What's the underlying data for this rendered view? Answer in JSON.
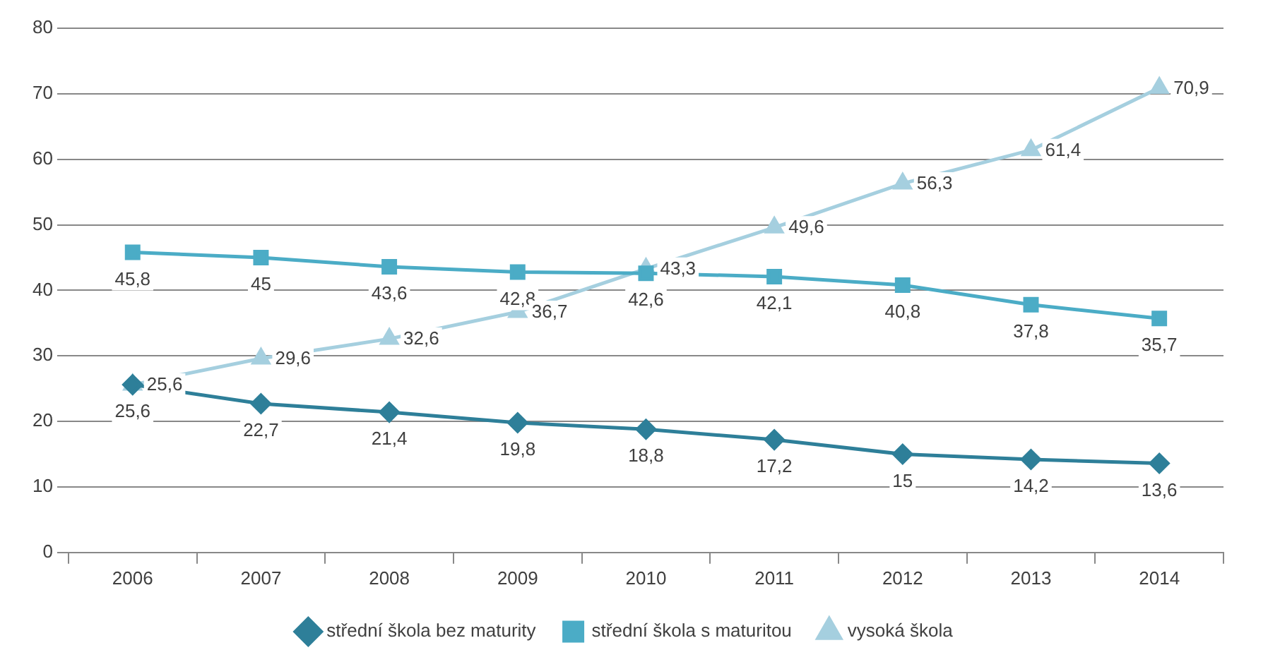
{
  "chart_data": {
    "type": "line",
    "categories": [
      "2006",
      "2007",
      "2008",
      "2009",
      "2010",
      "2011",
      "2012",
      "2013",
      "2014"
    ],
    "series": [
      {
        "name": "střední škola bez maturity",
        "color": "#2e7f99",
        "marker": "diamond",
        "values": [
          25.6,
          22.7,
          21.4,
          19.8,
          18.8,
          17.2,
          15,
          14.2,
          13.6
        ],
        "value_labels": [
          "25,6",
          "22,7",
          "21,4",
          "19,8",
          "18,8",
          "17,2",
          "15",
          "14,2",
          "13,6"
        ]
      },
      {
        "name": "střední škola s maturitou",
        "color": "#4bacc6",
        "marker": "square",
        "values": [
          45.8,
          45,
          43.6,
          42.8,
          42.6,
          42.1,
          40.8,
          37.8,
          35.7
        ],
        "value_labels": [
          "45,8",
          "45",
          "43,6",
          "42,8",
          "42,6",
          "42,1",
          "40,8",
          "37,8",
          "35,7"
        ]
      },
      {
        "name": "vysoká škola",
        "color": "#a5cfdf",
        "marker": "triangle",
        "values": [
          25.6,
          29.6,
          32.6,
          36.7,
          43.3,
          49.6,
          56.3,
          61.4,
          70.9
        ],
        "value_labels": [
          "25,6",
          "29,6",
          "32,6",
          "36,7",
          "43,3",
          "49,6",
          "56,3",
          "61,4",
          "70,9"
        ]
      }
    ],
    "ylim": [
      0,
      80
    ],
    "yticks": [
      0,
      10,
      20,
      30,
      40,
      50,
      60,
      70,
      80
    ],
    "grid": "y",
    "legend": "bottom",
    "line_style": "solid"
  }
}
